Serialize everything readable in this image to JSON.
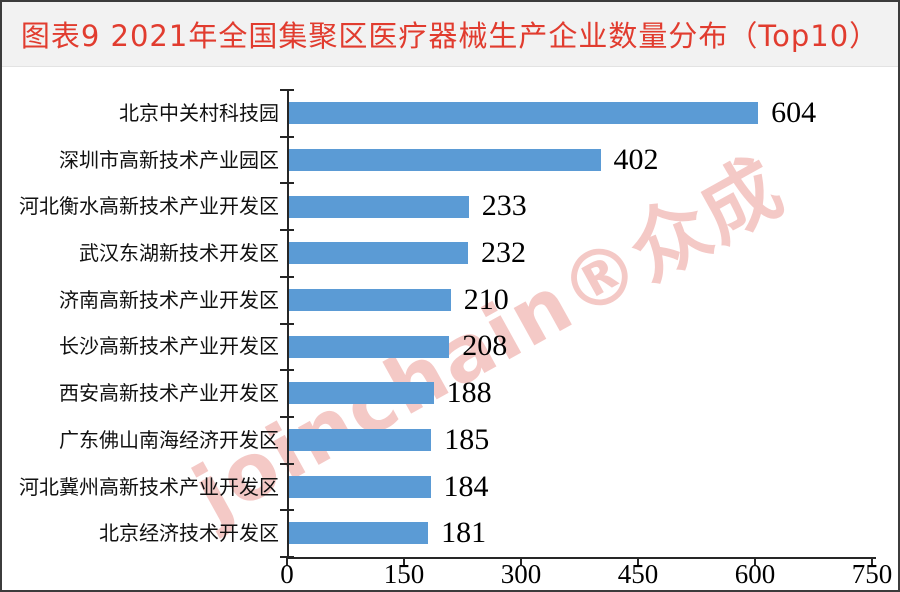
{
  "header": {
    "title": "图表9 2021年全国集聚区医疗器械生产企业数量分布（Top10）"
  },
  "watermark": {
    "text": "joinchain®众成"
  },
  "colors": {
    "title": "#E13C2F",
    "header_bg": "#F2F2F2",
    "bar": "#5B9BD5",
    "axis": "#262626",
    "watermark": "#EC9D99"
  },
  "chart_data": {
    "type": "bar",
    "orientation": "horizontal",
    "title": "图表9 2021年全国集聚区医疗器械生产企业数量分布（Top10）",
    "categories": [
      "北京中关村科技园",
      "深圳市高新技术产业园区",
      "河北衡水高新技术产业开发区",
      "武汉东湖新技术开发区",
      "济南高新技术产业开发区",
      "长沙高新技术产业开发区",
      "西安高新技术产业开发区",
      "广东佛山南海经济开发区",
      "河北冀州高新技术产业开发区",
      "北京经济技术开发区"
    ],
    "values": [
      604,
      402,
      233,
      232,
      210,
      208,
      188,
      185,
      184,
      181
    ],
    "xlabel": "",
    "ylabel": "",
    "xlim": [
      0,
      750
    ],
    "xticks": [
      0,
      150,
      300,
      450,
      600,
      750
    ],
    "grid": false,
    "legend": false,
    "value_labels": true
  }
}
